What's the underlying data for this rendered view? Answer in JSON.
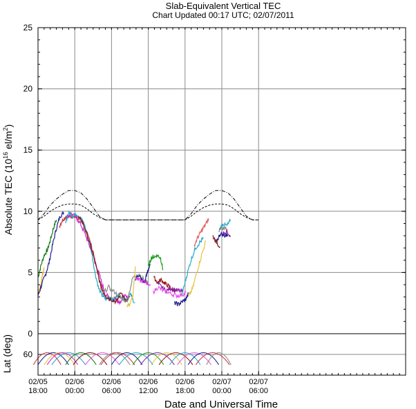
{
  "chart_data": [
    {
      "type": "line",
      "title": "Slab-Equivalent Vertical TEC",
      "subtitle": "Chart Updated 00:17 UTC; 02/07/2011",
      "ylabel": "Absolute TEC (10<sup>16</sup> el/m<sup>2</sup>)",
      "ylabel_main": "Absolute TEC (10",
      "ylabel_exp1": "16",
      "ylabel_mid": " el/m",
      "ylabel_exp2": "2",
      "ylabel_end": ")",
      "xlabel": "Date and Universal Time",
      "ylim": [
        0,
        25
      ],
      "y_ticks": [
        "0",
        "5",
        "10",
        "15",
        "20",
        "25"
      ],
      "x_range_hours": [
        0,
        60
      ],
      "x_ticks": [
        {
          "h": 0,
          "date": "02/05",
          "time": "18:00"
        },
        {
          "h": 6,
          "date": "02/06",
          "time": "00:00"
        },
        {
          "h": 12,
          "date": "02/06",
          "time": "06:00"
        },
        {
          "h": 18,
          "date": "02/06",
          "time": "12:00"
        },
        {
          "h": 24,
          "date": "02/06",
          "time": "18:00"
        },
        {
          "h": 30,
          "date": "02/07",
          "time": "00:00"
        },
        {
          "h": 36,
          "date": "02/07",
          "time": "06:00"
        }
      ],
      "grid": true,
      "reference_curves": [
        {
          "style": "dash-dot",
          "x": [
            0,
            1,
            2,
            3,
            4,
            5,
            6,
            7,
            8,
            9,
            10,
            11,
            12,
            18,
            24,
            25,
            26,
            27,
            28,
            29,
            30,
            31,
            32,
            33,
            34,
            35,
            36
          ],
          "y": [
            9.3,
            9.8,
            10.5,
            11.0,
            11.4,
            11.7,
            11.7,
            11.5,
            11.0,
            10.3,
            9.6,
            9.3,
            9.3,
            9.3,
            9.3,
            9.8,
            10.5,
            11.0,
            11.4,
            11.7,
            11.7,
            11.5,
            11.0,
            10.3,
            9.6,
            9.3,
            9.3
          ]
        },
        {
          "style": "dashed",
          "x": [
            0,
            1,
            2,
            3,
            4,
            5,
            6,
            7,
            8,
            9,
            10,
            11,
            12,
            18,
            24,
            25,
            26,
            27,
            28,
            29,
            30,
            31,
            32,
            33,
            34,
            35,
            36
          ],
          "y": [
            9.3,
            9.6,
            10.0,
            10.3,
            10.5,
            10.6,
            10.6,
            10.5,
            10.2,
            9.8,
            9.5,
            9.3,
            9.3,
            9.3,
            9.3,
            9.6,
            10.0,
            10.3,
            10.5,
            10.6,
            10.6,
            10.5,
            10.2,
            9.8,
            9.5,
            9.3,
            9.3
          ]
        }
      ],
      "series": [
        {
          "color": "#1a7a1a",
          "x": [
            0,
            0.5,
            1,
            1.5,
            2,
            2.5,
            3
          ],
          "y": [
            4.6,
            5.6,
            6.4,
            6.8,
            7.6,
            8.6,
            9.3
          ]
        },
        {
          "color": "#e8b020",
          "x": [
            0,
            0.5,
            1
          ],
          "y": [
            3.2,
            4.2,
            5.4
          ]
        },
        {
          "color": "#1c1c8c",
          "x": [
            0,
            0.6,
            1.2,
            1.8,
            2.4,
            3,
            3.6,
            4.2
          ],
          "y": [
            3.1,
            4.0,
            4.8,
            5.8,
            7.3,
            8.6,
            9.6,
            9.9
          ]
        },
        {
          "color": "#cc3344",
          "x": [
            3.5,
            4,
            4.6,
            5.2,
            5.8,
            6.4,
            7,
            7.6,
            8.2,
            8.8,
            9.4,
            10.2,
            11,
            11.8,
            12.5,
            13.2
          ],
          "y": [
            8.8,
            9.3,
            9.6,
            9.5,
            9.7,
            9.4,
            9.3,
            8.6,
            8.0,
            7.0,
            5.8,
            4.1,
            3.0,
            2.8,
            2.9,
            2.7
          ]
        },
        {
          "color": "#cc22cc",
          "x": [
            4.6,
            5.4,
            6.2,
            7,
            7.8,
            8.6,
            9.4,
            10.2,
            11,
            11.8,
            12.6,
            13.4,
            14,
            14.6
          ],
          "y": [
            9.5,
            9.8,
            9.5,
            8.9,
            8.0,
            6.9,
            5.8,
            4.5,
            3.2,
            2.9,
            2.8,
            2.6,
            3.1,
            2.9
          ]
        },
        {
          "color": "#22a8c8",
          "x": [
            4.5,
            5.1,
            5.7,
            6.3,
            6.9,
            7.5,
            8.1,
            8.7,
            9.3,
            9.9,
            10.5,
            11.1,
            11.7,
            12.3,
            13,
            13.7,
            14.4,
            15.1,
            15.8
          ],
          "y": [
            9.2,
            9.9,
            9.6,
            9.8,
            9.5,
            9.0,
            8.0,
            6.8,
            5.0,
            3.7,
            3.1,
            2.8,
            3.0,
            2.7,
            3.2,
            3.0,
            2.8,
            3.2,
            2.5
          ]
        },
        {
          "color": "#7a1a1a",
          "x": [
            6.5,
            7.2,
            8,
            8.8,
            9.6,
            10.4,
            11.2,
            12,
            12.8,
            13.6,
            14.4,
            15
          ],
          "y": [
            9.5,
            9.2,
            8.1,
            6.8,
            5.2,
            3.6,
            3.0,
            2.8,
            2.6,
            3.4,
            2.6,
            3.0
          ]
        },
        {
          "color": "#888888",
          "x": [
            10.5,
            11.5,
            12.5,
            13.5,
            14.5,
            15.5,
            16.5,
            17.5,
            18
          ],
          "y": [
            3.2,
            3.8,
            3.4,
            3.0,
            2.6,
            4.6,
            4.9,
            4.3,
            4.1
          ]
        },
        {
          "color": "#e8c040",
          "x": [
            14.5,
            15,
            15.5,
            15.9
          ],
          "y": [
            2.3,
            2.4,
            3.1,
            5.5
          ]
        },
        {
          "color": "#1c1c8c",
          "x": [
            15.9,
            16.4,
            16.9,
            17.4,
            17.9,
            18.3
          ],
          "y": [
            4.5,
            4.8,
            4.4,
            4.2,
            5.1,
            5.6
          ]
        },
        {
          "color": "#1a9a1a",
          "x": [
            18,
            18.5,
            19,
            19.5,
            20,
            20.4
          ],
          "y": [
            5.5,
            6.2,
            6.3,
            6.4,
            6.2,
            5.2
          ]
        },
        {
          "color": "#e040e0",
          "x": [
            16,
            16.8,
            17.6,
            18.4
          ],
          "y": [
            4.5,
            4.3,
            4.2,
            4.0
          ]
        },
        {
          "color": "#9a1a1a",
          "x": [
            18.9,
            19.5,
            20.1,
            20.7,
            21.3,
            21.9,
            22.5
          ],
          "y": [
            4.6,
            4.2,
            4.4,
            4.1,
            3.9,
            3.6,
            3.5
          ]
        },
        {
          "color": "#8a22aa",
          "x": [
            19.5,
            20.2,
            20.9,
            21.6,
            22.3,
            23,
            23.7
          ],
          "y": [
            4.1,
            3.8,
            3.5,
            3.7,
            3.6,
            3.5,
            3.4
          ]
        },
        {
          "color": "#e858e8",
          "x": [
            18.8,
            19.6,
            20.4,
            21.2,
            22,
            22.8,
            23.6,
            24.2
          ],
          "y": [
            3.4,
            3.8,
            3.5,
            3.4,
            3.2,
            3.1,
            3.2,
            3.4
          ]
        },
        {
          "color": "#1c1c8c",
          "x": [
            22.3,
            22.9,
            23.5,
            24.1,
            24.6
          ],
          "y": [
            2.5,
            2.4,
            2.6,
            2.8,
            3.3
          ]
        },
        {
          "color": "#22a8c8",
          "x": [
            23.5,
            24.2,
            24.9,
            25.6,
            26.3,
            27
          ],
          "y": [
            3.2,
            4.6,
            5.9,
            6.9,
            7.4,
            7.8
          ]
        },
        {
          "color": "#e8c040",
          "x": [
            24.6,
            25.3,
            26,
            26.7,
            27.4
          ],
          "y": [
            3.0,
            3.8,
            5.2,
            6.4,
            7.6
          ]
        },
        {
          "color": "#e06060",
          "x": [
            25.5,
            26.1,
            26.7,
            27.3,
            27.9
          ],
          "y": [
            7.2,
            7.9,
            8.4,
            8.9,
            9.4
          ]
        },
        {
          "color": "#22a8c8",
          "x": [
            29.6,
            30.2,
            30.8,
            31.4
          ],
          "y": [
            8.5,
            9.0,
            8.8,
            9.2
          ]
        },
        {
          "color": "#1c1c8c",
          "x": [
            29.2,
            29.8,
            30.4,
            31
          ],
          "y": [
            7.6,
            8.2,
            8.0,
            8.1
          ]
        },
        {
          "color": "#8a22aa",
          "x": [
            30.2,
            30.8,
            31.4
          ],
          "y": [
            8.2,
            8.4,
            7.9
          ]
        },
        {
          "color": "#7a1a1a",
          "x": [
            28.5,
            29.1,
            29.7
          ],
          "y": [
            8.0,
            7.5,
            7.1
          ]
        },
        {
          "color": "#888888",
          "x": [
            29.5,
            30.1,
            30.7
          ],
          "y": [
            8.4,
            8.6,
            8.7
          ]
        }
      ]
    },
    {
      "type": "line",
      "title": "",
      "ylabel": "Lat (deg)",
      "xlabel": "",
      "y_ticks": [
        "60"
      ],
      "ylim": [
        75,
        45
      ],
      "tick_value": 60,
      "grid": true,
      "arc_tracks": [
        {
          "color": "#cc3344",
          "center_h": 1.5,
          "width_h": 4.5
        },
        {
          "color": "#1c1c8c",
          "center_h": 2.5,
          "width_h": 5
        },
        {
          "color": "#e8c040",
          "center_h": 3.5,
          "width_h": 5
        },
        {
          "color": "#22a8c8",
          "center_h": 5,
          "width_h": 5.5
        },
        {
          "color": "#cc22cc",
          "center_h": 4,
          "width_h": 5
        },
        {
          "color": "#1a7a1a",
          "center_h": 7,
          "width_h": 5
        },
        {
          "color": "#7a1a1a",
          "center_h": 8.5,
          "width_h": 5.5
        },
        {
          "color": "#e858e8",
          "center_h": 10.5,
          "width_h": 5.5
        },
        {
          "color": "#888888",
          "center_h": 12.5,
          "width_h": 5
        },
        {
          "color": "#cc3344",
          "center_h": 13,
          "width_h": 5.5
        },
        {
          "color": "#1c1c8c",
          "center_h": 14.5,
          "width_h": 5
        },
        {
          "color": "#22a8c8",
          "center_h": 16,
          "width_h": 5.5
        },
        {
          "color": "#1a9a1a",
          "center_h": 18,
          "width_h": 5
        },
        {
          "color": "#8a22aa",
          "center_h": 19.5,
          "width_h": 5.5
        },
        {
          "color": "#e8c040",
          "center_h": 21,
          "width_h": 5
        },
        {
          "color": "#9a1a1a",
          "center_h": 22.5,
          "width_h": 5.5
        },
        {
          "color": "#22a8c8",
          "center_h": 24,
          "width_h": 5
        },
        {
          "color": "#e858e8",
          "center_h": 25.5,
          "width_h": 5.5
        },
        {
          "color": "#1c1c8c",
          "center_h": 27,
          "width_h": 5
        },
        {
          "color": "#cc3344",
          "center_h": 28.5,
          "width_h": 5.5
        },
        {
          "color": "#888888",
          "center_h": 29.5,
          "width_h": 4
        }
      ]
    }
  ]
}
